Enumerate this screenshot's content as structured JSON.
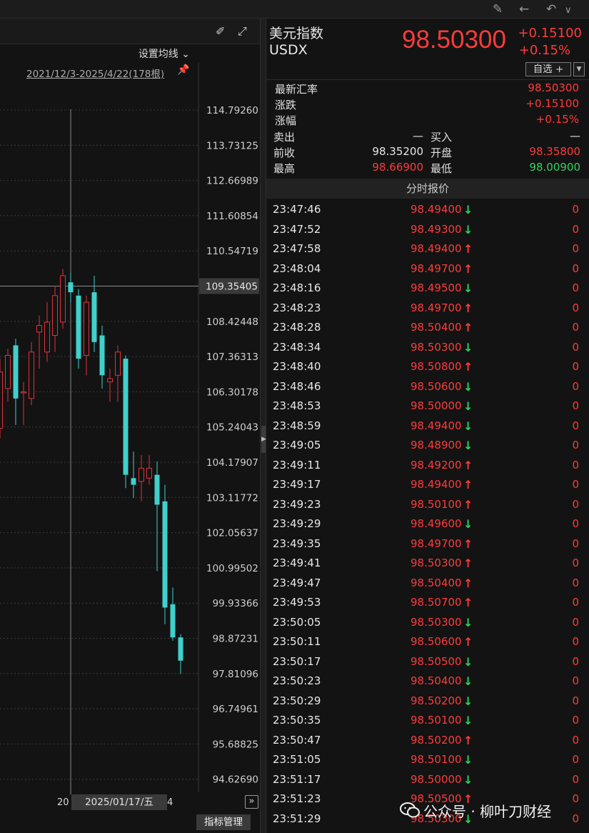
{
  "toolbar_icons": [
    "stamp-icon",
    "arrow-left-icon",
    "undo-icon",
    "chevron-down-icon"
  ],
  "chart": {
    "ma_setting": "设置均线",
    "range_label": "2021/12/3-2025/4/22(178根)",
    "crosshair_date": "2025/01/17/五",
    "x_left_label": "20",
    "x_right_label": "4",
    "indicator_button": "指标管理",
    "more_button": "»",
    "crosshair_value": "109.35405",
    "y_ticks": [
      "114.79260",
      "113.73125",
      "112.66989",
      "111.60854",
      "110.54719",
      "108.42448",
      "107.36313",
      "106.30178",
      "105.24043",
      "104.17907",
      "103.11772",
      "102.05637",
      "100.99502",
      "99.93366",
      "98.87231",
      "97.81096",
      "96.74961",
      "95.68825",
      "94.62690"
    ]
  },
  "chart_data": {
    "type": "candlestick",
    "up_color": "#e0333a",
    "down_color": "#40d0cc",
    "ylim": [
      94.2,
      115.5
    ],
    "candles": [
      {
        "o": 105.2,
        "c": 106.9,
        "h": 107.3,
        "l": 104.9
      },
      {
        "o": 106.4,
        "c": 107.4,
        "h": 107.6,
        "l": 106.0
      },
      {
        "o": 107.7,
        "c": 106.1,
        "h": 107.9,
        "l": 105.3
      },
      {
        "o": 106.3,
        "c": 106.3,
        "h": 106.6,
        "l": 105.3
      },
      {
        "o": 106.1,
        "c": 107.5,
        "h": 107.8,
        "l": 105.9
      },
      {
        "o": 108.1,
        "c": 108.3,
        "h": 108.6,
        "l": 107.0
      },
      {
        "o": 107.5,
        "c": 108.4,
        "h": 109.0,
        "l": 107.2
      },
      {
        "o": 108.0,
        "c": 109.2,
        "h": 109.5,
        "l": 107.5
      },
      {
        "o": 108.4,
        "c": 109.8,
        "h": 110.0,
        "l": 108.2
      },
      {
        "o": 109.6,
        "c": 109.3,
        "h": 109.9,
        "l": 109.0
      },
      {
        "o": 109.2,
        "c": 107.3,
        "h": 109.4,
        "l": 107.0
      },
      {
        "o": 107.4,
        "c": 109.0,
        "h": 109.2,
        "l": 106.8
      },
      {
        "o": 109.3,
        "c": 107.8,
        "h": 109.8,
        "l": 107.5
      },
      {
        "o": 108.0,
        "c": 106.8,
        "h": 108.3,
        "l": 106.4
      },
      {
        "o": 106.6,
        "c": 106.7,
        "h": 107.0,
        "l": 106.0
      },
      {
        "o": 106.8,
        "c": 107.5,
        "h": 107.7,
        "l": 106.0
      },
      {
        "o": 107.3,
        "c": 103.8,
        "h": 107.4,
        "l": 103.4
      },
      {
        "o": 103.7,
        "c": 103.5,
        "h": 104.5,
        "l": 103.1
      },
      {
        "o": 103.6,
        "c": 104.0,
        "h": 104.4,
        "l": 103.0
      },
      {
        "o": 103.7,
        "c": 104.0,
        "h": 104.4,
        "l": 103.5
      },
      {
        "o": 103.8,
        "c": 102.9,
        "h": 104.2,
        "l": 100.9
      },
      {
        "o": 103.0,
        "c": 99.8,
        "h": 103.5,
        "l": 99.3
      },
      {
        "o": 99.9,
        "c": 98.9,
        "h": 100.4,
        "l": 98.8
      },
      {
        "o": 98.9,
        "c": 98.2,
        "h": 99.0,
        "l": 97.8
      }
    ]
  },
  "quote": {
    "name": "美元指数",
    "code": "USDX",
    "price": "98.50300",
    "change": "+0.15100",
    "change_pct": "+0.15%",
    "zixuan_label": "自选 +",
    "dropdown_arrow": "▼",
    "stats": [
      {
        "label": "最新汇率",
        "value": "98.50300"
      },
      {
        "label": "涨跌",
        "value": "+0.15100"
      },
      {
        "label": "涨幅",
        "value": "+0.15%"
      }
    ],
    "pairs": [
      {
        "l1": "卖出",
        "v1": "—",
        "l2": "买入",
        "v2": "—"
      },
      {
        "l1": "前收",
        "v1": "98.35200",
        "l2": "开盘",
        "v2": "98.35800"
      },
      {
        "l1": "最高",
        "v1": "98.66900",
        "l2": "最低",
        "v2": "98.00900"
      }
    ],
    "ticks_title": "分时报价",
    "ticks": [
      {
        "time": "23:47:46",
        "price": "98.49400",
        "dir": "down",
        "vol": "0"
      },
      {
        "time": "23:47:52",
        "price": "98.49300",
        "dir": "down",
        "vol": "0"
      },
      {
        "time": "23:47:58",
        "price": "98.49400",
        "dir": "up",
        "vol": "0"
      },
      {
        "time": "23:48:04",
        "price": "98.49700",
        "dir": "up",
        "vol": "0"
      },
      {
        "time": "23:48:16",
        "price": "98.49500",
        "dir": "down",
        "vol": "0"
      },
      {
        "time": "23:48:23",
        "price": "98.49700",
        "dir": "up",
        "vol": "0"
      },
      {
        "time": "23:48:28",
        "price": "98.50400",
        "dir": "up",
        "vol": "0"
      },
      {
        "time": "23:48:34",
        "price": "98.50300",
        "dir": "down",
        "vol": "0"
      },
      {
        "time": "23:48:40",
        "price": "98.50800",
        "dir": "up",
        "vol": "0"
      },
      {
        "time": "23:48:46",
        "price": "98.50600",
        "dir": "down",
        "vol": "0"
      },
      {
        "time": "23:48:53",
        "price": "98.50000",
        "dir": "down",
        "vol": "0"
      },
      {
        "time": "23:48:59",
        "price": "98.49400",
        "dir": "down",
        "vol": "0"
      },
      {
        "time": "23:49:05",
        "price": "98.48900",
        "dir": "down",
        "vol": "0"
      },
      {
        "time": "23:49:11",
        "price": "98.49200",
        "dir": "up",
        "vol": "0"
      },
      {
        "time": "23:49:17",
        "price": "98.49400",
        "dir": "up",
        "vol": "0"
      },
      {
        "time": "23:49:23",
        "price": "98.50100",
        "dir": "up",
        "vol": "0"
      },
      {
        "time": "23:49:29",
        "price": "98.49600",
        "dir": "down",
        "vol": "0"
      },
      {
        "time": "23:49:35",
        "price": "98.49700",
        "dir": "up",
        "vol": "0"
      },
      {
        "time": "23:49:41",
        "price": "98.50300",
        "dir": "up",
        "vol": "0"
      },
      {
        "time": "23:49:47",
        "price": "98.50400",
        "dir": "up",
        "vol": "0"
      },
      {
        "time": "23:49:53",
        "price": "98.50700",
        "dir": "up",
        "vol": "0"
      },
      {
        "time": "23:50:05",
        "price": "98.50300",
        "dir": "down",
        "vol": "0"
      },
      {
        "time": "23:50:11",
        "price": "98.50600",
        "dir": "up",
        "vol": "0"
      },
      {
        "time": "23:50:17",
        "price": "98.50500",
        "dir": "down",
        "vol": "0"
      },
      {
        "time": "23:50:23",
        "price": "98.50400",
        "dir": "down",
        "vol": "0"
      },
      {
        "time": "23:50:29",
        "price": "98.50200",
        "dir": "down",
        "vol": "0"
      },
      {
        "time": "23:50:35",
        "price": "98.50100",
        "dir": "down",
        "vol": "0"
      },
      {
        "time": "23:50:47",
        "price": "98.50200",
        "dir": "up",
        "vol": "0"
      },
      {
        "time": "23:51:05",
        "price": "98.50100",
        "dir": "down",
        "vol": "0"
      },
      {
        "time": "23:51:17",
        "price": "98.50000",
        "dir": "down",
        "vol": "0"
      },
      {
        "time": "23:51:23",
        "price": "98.50500",
        "dir": "up",
        "vol": "0"
      },
      {
        "time": "23:51:29",
        "price": "98.50300",
        "dir": "down",
        "vol": "0"
      }
    ]
  },
  "watermark": "公众号 · 柳叶刀财经"
}
